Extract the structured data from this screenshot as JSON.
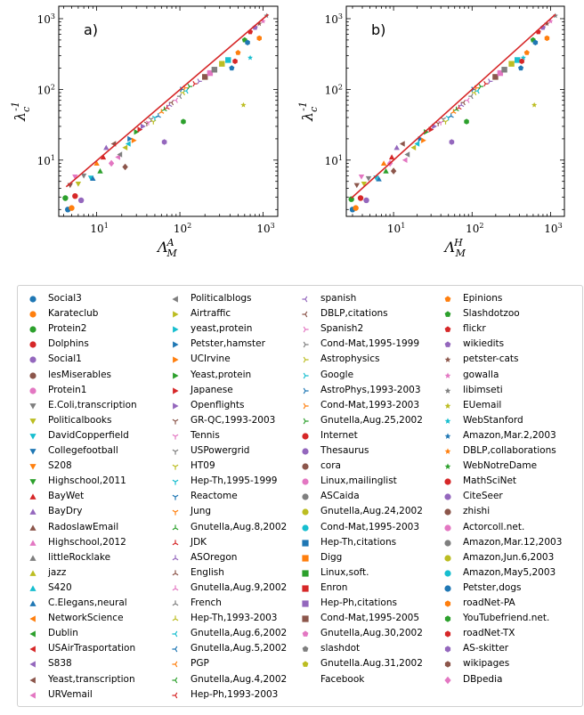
{
  "chart_data": [
    {
      "type": "scatter",
      "panel_label": "a)",
      "xlabel": "Λ_M^A",
      "ylabel": "λ_c^{-1}",
      "xscale": "log",
      "yscale": "log",
      "xlim": [
        3.5,
        1500
      ],
      "ylim": [
        1.6,
        1500
      ],
      "xticks": [
        "10^1",
        "10^2",
        "10^3"
      ],
      "yticks": [
        "10^1",
        "10^2",
        "10^3"
      ],
      "fit_line": {
        "x": [
          4.3,
          1150
        ],
        "y": [
          4.2,
          1150
        ],
        "color": "#d62728"
      },
      "points": [
        [
          4.5,
          2.0
        ],
        [
          5,
          2.1
        ],
        [
          4.2,
          2.9
        ],
        [
          5.5,
          3.1
        ],
        [
          6.5,
          2.7
        ],
        [
          4.8,
          4.4
        ],
        [
          5.5,
          5.8
        ],
        [
          7,
          6
        ],
        [
          6,
          4.6
        ],
        [
          8.5,
          5.6
        ],
        [
          9,
          5.5
        ],
        [
          10,
          9
        ],
        [
          11,
          7
        ],
        [
          12,
          11
        ],
        [
          13,
          15
        ],
        [
          16,
          17
        ],
        [
          18,
          11
        ],
        [
          19,
          12
        ],
        [
          22,
          15
        ],
        [
          24,
          17
        ],
        [
          25,
          20
        ],
        [
          28,
          19
        ],
        [
          30,
          25
        ],
        [
          33,
          27
        ],
        [
          36,
          30
        ],
        [
          40,
          33
        ],
        [
          42,
          34
        ],
        [
          45,
          38
        ],
        [
          48,
          35
        ],
        [
          50,
          40
        ],
        [
          55,
          42
        ],
        [
          60,
          48
        ],
        [
          65,
          52
        ],
        [
          70,
          55
        ],
        [
          75,
          60
        ],
        [
          80,
          65
        ],
        [
          90,
          70
        ],
        [
          100,
          80
        ],
        [
          110,
          90
        ],
        [
          120,
          95
        ],
        [
          105,
          100
        ],
        [
          115,
          105
        ],
        [
          130,
          110
        ],
        [
          150,
          120
        ],
        [
          170,
          130
        ],
        [
          200,
          150
        ],
        [
          230,
          170
        ],
        [
          260,
          190
        ],
        [
          320,
          230
        ],
        [
          380,
          260
        ],
        [
          420,
          200
        ],
        [
          500,
          330
        ],
        [
          600,
          500
        ],
        [
          700,
          650
        ],
        [
          800,
          750
        ],
        [
          900,
          850
        ],
        [
          1000,
          920
        ],
        [
          1100,
          1100
        ],
        [
          580,
          60
        ],
        [
          700,
          280
        ],
        [
          650,
          460
        ],
        [
          900,
          530
        ],
        [
          110,
          35
        ],
        [
          460,
          250
        ],
        [
          65,
          18
        ],
        [
          22,
          8
        ],
        [
          15,
          9
        ]
      ]
    },
    {
      "type": "scatter",
      "panel_label": "b)",
      "xlabel": "Λ_M^H",
      "ylabel": "λ_c^{-1}",
      "xscale": "log",
      "yscale": "log",
      "xlim": [
        2.5,
        1500
      ],
      "ylim": [
        1.6,
        1500
      ],
      "xticks": [
        "10^1",
        "10^2",
        "10^3"
      ],
      "yticks": [
        "10^1",
        "10^2",
        "10^3"
      ],
      "fit_line": {
        "x": [
          2.9,
          1150
        ],
        "y": [
          2.9,
          1150
        ],
        "color": "#d62728"
      },
      "points": [
        [
          3,
          2.0
        ],
        [
          3.3,
          2.1
        ],
        [
          2.9,
          2.8
        ],
        [
          3.8,
          2.9
        ],
        [
          4.5,
          2.7
        ],
        [
          3.4,
          4.4
        ],
        [
          3.9,
          5.8
        ],
        [
          4.8,
          5.5
        ],
        [
          4.2,
          4.6
        ],
        [
          6,
          5.6
        ],
        [
          6.5,
          5.4
        ],
        [
          7.5,
          9
        ],
        [
          8,
          7
        ],
        [
          9.5,
          11
        ],
        [
          11,
          15
        ],
        [
          13,
          17
        ],
        [
          14,
          10
        ],
        [
          15,
          12
        ],
        [
          18,
          15
        ],
        [
          20,
          17
        ],
        [
          22,
          20
        ],
        [
          24,
          19
        ],
        [
          26,
          25
        ],
        [
          30,
          27
        ],
        [
          33,
          30
        ],
        [
          37,
          33
        ],
        [
          40,
          34
        ],
        [
          43,
          38
        ],
        [
          46,
          35
        ],
        [
          50,
          40
        ],
        [
          54,
          42
        ],
        [
          58,
          48
        ],
        [
          63,
          52
        ],
        [
          68,
          55
        ],
        [
          73,
          60
        ],
        [
          78,
          65
        ],
        [
          88,
          70
        ],
        [
          98,
          80
        ],
        [
          108,
          90
        ],
        [
          118,
          95
        ],
        [
          103,
          100
        ],
        [
          113,
          105
        ],
        [
          128,
          110
        ],
        [
          148,
          120
        ],
        [
          168,
          130
        ],
        [
          198,
          150
        ],
        [
          228,
          170
        ],
        [
          258,
          190
        ],
        [
          318,
          230
        ],
        [
          378,
          260
        ],
        [
          418,
          200
        ],
        [
          498,
          330
        ],
        [
          598,
          500
        ],
        [
          698,
          650
        ],
        [
          798,
          750
        ],
        [
          898,
          850
        ],
        [
          998,
          920
        ],
        [
          1150,
          1100
        ],
        [
          620,
          60
        ],
        [
          450,
          280
        ],
        [
          640,
          460
        ],
        [
          900,
          530
        ],
        [
          85,
          35
        ],
        [
          430,
          250
        ],
        [
          55,
          18
        ],
        [
          10,
          7
        ],
        [
          9,
          9
        ]
      ]
    }
  ],
  "legend": [
    [
      "Social3",
      "Karateclub",
      "Protein2",
      "Dolphins",
      "Social1",
      "lesMiserables",
      "Protein1",
      "E.Coli,transcription",
      "Politicalbooks",
      "DavidCopperfield",
      "Collegefootball",
      "S208",
      "Highschool,2011",
      "BayWet",
      "BayDry",
      "RadoslawEmail",
      "Highschool,2012",
      "littleRocklake",
      "jazz",
      "S420",
      "C.Elegans,neural",
      "NetworkScience",
      "Dublin",
      "USAirTrasportation",
      "S838",
      "Yeast,transcription",
      "URVemail"
    ],
    [
      "Politicalblogs",
      "Airtraffic",
      "yeast,protein",
      "Petster,hamster",
      "UCIrvine",
      "Yeast,protein",
      "Japanese",
      "Openflights",
      "GR-QC,1993-2003",
      "Tennis",
      "USPowergrid",
      "HT09",
      "Hep-Th,1995-1999",
      "Reactome",
      "Jung",
      "Gnutella,Aug.8,2002",
      "JDK",
      "ASOregon",
      "English",
      "Gnutella,Aug.9,2002",
      "French",
      "Hep-Th,1993-2003",
      "Gnutella,Aug.6,2002",
      "Gnutella,Aug.5,2002",
      "PGP",
      "Gnutella,Aug.4,2002",
      "Hep-Ph,1993-2003"
    ],
    [
      "spanish",
      "DBLP,citations",
      "Spanish2",
      "Cond-Mat,1995-1999",
      "Astrophysics",
      "Google",
      "AstroPhys,1993-2003",
      "Cond-Mat,1993-2003",
      "Gnutella,Aug.25,2002",
      "Internet",
      "Thesaurus",
      "cora",
      "Linux,mailinglist",
      "ASCaida",
      "Gnutella,Aug.24,2002",
      "Cond-Mat,1995-2003",
      "Hep-Th,citations",
      "Digg",
      "Linux,soft.",
      "Enron",
      "Hep-Ph,citations",
      "Cond-Mat,1995-2005",
      "Gnutella,Aug.30,2002",
      "slashdot",
      "Gnutella.Aug.31,2002",
      "Facebook"
    ],
    [
      "Epinions",
      "Slashdotzoo",
      "flickr",
      "wikiedits",
      "petster-cats",
      "gowalla",
      "libimseti",
      "EUemail",
      "WebStanford",
      "Amazon,Mar.2,2003",
      "DBLP,collaborations",
      "WebNotreDame",
      "MathSciNet",
      "CiteSeer",
      "zhishi",
      "Actorcoll.net.",
      "Amazon,Mar.12,2003",
      "Amazon,Jun.6,2003",
      "Amazon,May5,2003",
      "Petster,dogs",
      "roadNet-PA",
      "YouTubefriend.net.",
      "roadNet-TX",
      "AS-skitter",
      "wikipages",
      "DBpedia"
    ]
  ],
  "legend_markers": [
    [
      "circle",
      "circle",
      "circle",
      "circle",
      "circle",
      "circle",
      "circle",
      "tri-down",
      "tri-down",
      "tri-down",
      "tri-down",
      "tri-down",
      "tri-down",
      "tri-up",
      "tri-up",
      "tri-up",
      "tri-up",
      "tri-up",
      "tri-up",
      "tri-up",
      "tri-up",
      "tri-left",
      "tri-left",
      "tri-left",
      "tri-left",
      "tri-left",
      "tri-left"
    ],
    [
      "tri-left",
      "tri-right",
      "tri-right",
      "tri-right",
      "tri-right",
      "tri-right",
      "tri-right",
      "tri-right",
      "y-down",
      "y-down",
      "y-down",
      "y-down",
      "y-down",
      "y-down",
      "y-down",
      "y-up",
      "y-up",
      "y-up",
      "y-up",
      "y-up",
      "y-up",
      "y-up",
      "y-left",
      "y-left",
      "y-left",
      "y-left",
      "y-left"
    ],
    [
      "y-left",
      "y-left",
      "y-right",
      "y-right",
      "y-right",
      "y-right",
      "y-right",
      "y-right",
      "y-right",
      "circle",
      "circle",
      "circle",
      "circle",
      "circle",
      "circle",
      "circle",
      "square",
      "square",
      "square",
      "square",
      "square",
      "square",
      "pentagon",
      "pentagon",
      "pentagon",
      "none"
    ],
    [
      "pentagon",
      "pentagon",
      "pentagon",
      "pentagon",
      "star",
      "star",
      "star",
      "star",
      "star",
      "star",
      "star",
      "star",
      "circle",
      "circle",
      "circle",
      "circle",
      "circle",
      "circle",
      "circle",
      "circle",
      "hexagon",
      "hexagon",
      "hexagon",
      "hexagon",
      "hexagon",
      "diamond"
    ]
  ],
  "palette": [
    "#1f77b4",
    "#ff7f0e",
    "#2ca02c",
    "#d62728",
    "#9467bd",
    "#8c564b",
    "#e377c2",
    "#7f7f7f",
    "#bcbd22",
    "#17becf"
  ]
}
